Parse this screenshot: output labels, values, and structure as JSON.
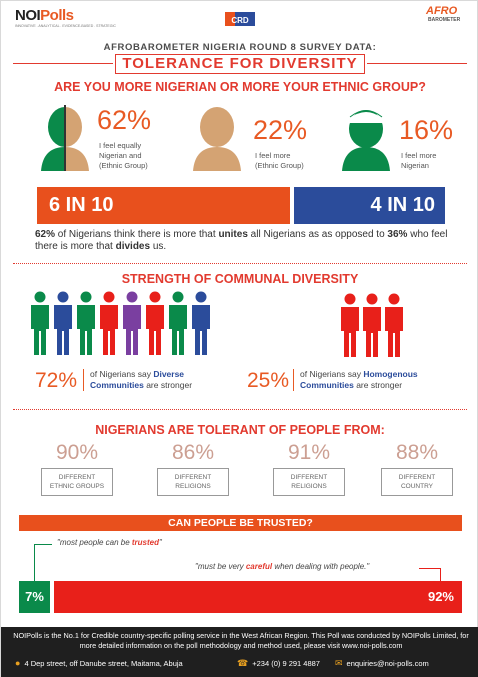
{
  "header": {
    "logo_left_a": "NOI",
    "logo_left_b": "Polls",
    "logo_left_tagline": "INNOVATIVE . ANALYTICAL . EVIDENCE-BASED . STRATEGIC",
    "logo_center": "CRD",
    "logo_right": "AFRO",
    "logo_right_sub": "BAROMETER"
  },
  "supertitle": "AFROBAROMETER NIGERIA ROUND 8 SURVEY DATA:",
  "title": "TOLERANCE FOR DIVERSITY",
  "section1": {
    "heading": "ARE YOU MORE NIGERIAN OR MORE YOUR ETHNIC GROUP?",
    "items": [
      {
        "pct": "62%",
        "desc": "I feel equally Nigerian and (Ethnic Group)"
      },
      {
        "pct": "22%",
        "desc": "I feel more (Ethnic Group)"
      },
      {
        "pct": "16%",
        "desc": "I feel more Nigerian"
      }
    ],
    "bar_left": "6 IN 10",
    "bar_right": "4 IN 10",
    "summary_pct1": "62%",
    "summary_a": " of Nigerians think there is more that ",
    "summary_bold1": "unites",
    "summary_b": " all Nigerians as as opposed to ",
    "summary_pct2": "36%",
    "summary_c": " who feel there is more that ",
    "summary_bold2": "divides",
    "summary_d": " us."
  },
  "section2": {
    "heading": "STRENGTH OF COMMUNAL DIVERSITY",
    "left_pct": "72%",
    "left_text_a": "of Nigerians say ",
    "left_text_b": "Diverse Communities",
    "left_text_c": " are stronger",
    "right_pct": "25%",
    "right_text_a": "of Nigerians say ",
    "right_text_b": "Homogenous Communities",
    "right_text_c": " are stronger"
  },
  "section3": {
    "heading": "NIGERIANS ARE TOLERANT OF PEOPLE FROM:",
    "items": [
      {
        "pct": "90%",
        "l1": "DIFFERENT",
        "l2": "ETHNIC GROUPS"
      },
      {
        "pct": "86%",
        "l1": "DIFFERENT",
        "l2": "RELIGIONS"
      },
      {
        "pct": "91%",
        "l1": "DIFFERENT",
        "l2": "RELIGIONS"
      },
      {
        "pct": "88%",
        "l1": "DIFFERENT",
        "l2": "COUNTRY"
      }
    ]
  },
  "section4": {
    "heading": "CAN PEOPLE BE TRUSTED?",
    "quote1_a": "\"most people can be ",
    "quote1_b": "trusted",
    "quote1_c": "\"",
    "quote2_a": "\"must be very ",
    "quote2_b": "careful",
    "quote2_c": " when dealing with people.\"",
    "pct_trusted": "7%",
    "pct_careful": "92%",
    "value_trusted": 7,
    "value_careful": 92
  },
  "footer": {
    "text": "NOIPolls is the No.1 for Credible country-specific polling service in the West African Region. This Poll was conducted by NOIPolls Limited, for more detailed information on the poll methodology and method used, please visit www.noi-polls.com",
    "address": "4 Dep street, off Danube street, Maitama, Abuja",
    "phone": "+234 (0) 9 291 4887",
    "email": "enquiries@noi-polls.com"
  },
  "colors": {
    "orange": "#e8501d",
    "red": "#e23a2f",
    "blue": "#2b4c9b",
    "green": "#0a8a4a",
    "skin": "#d4a373"
  }
}
